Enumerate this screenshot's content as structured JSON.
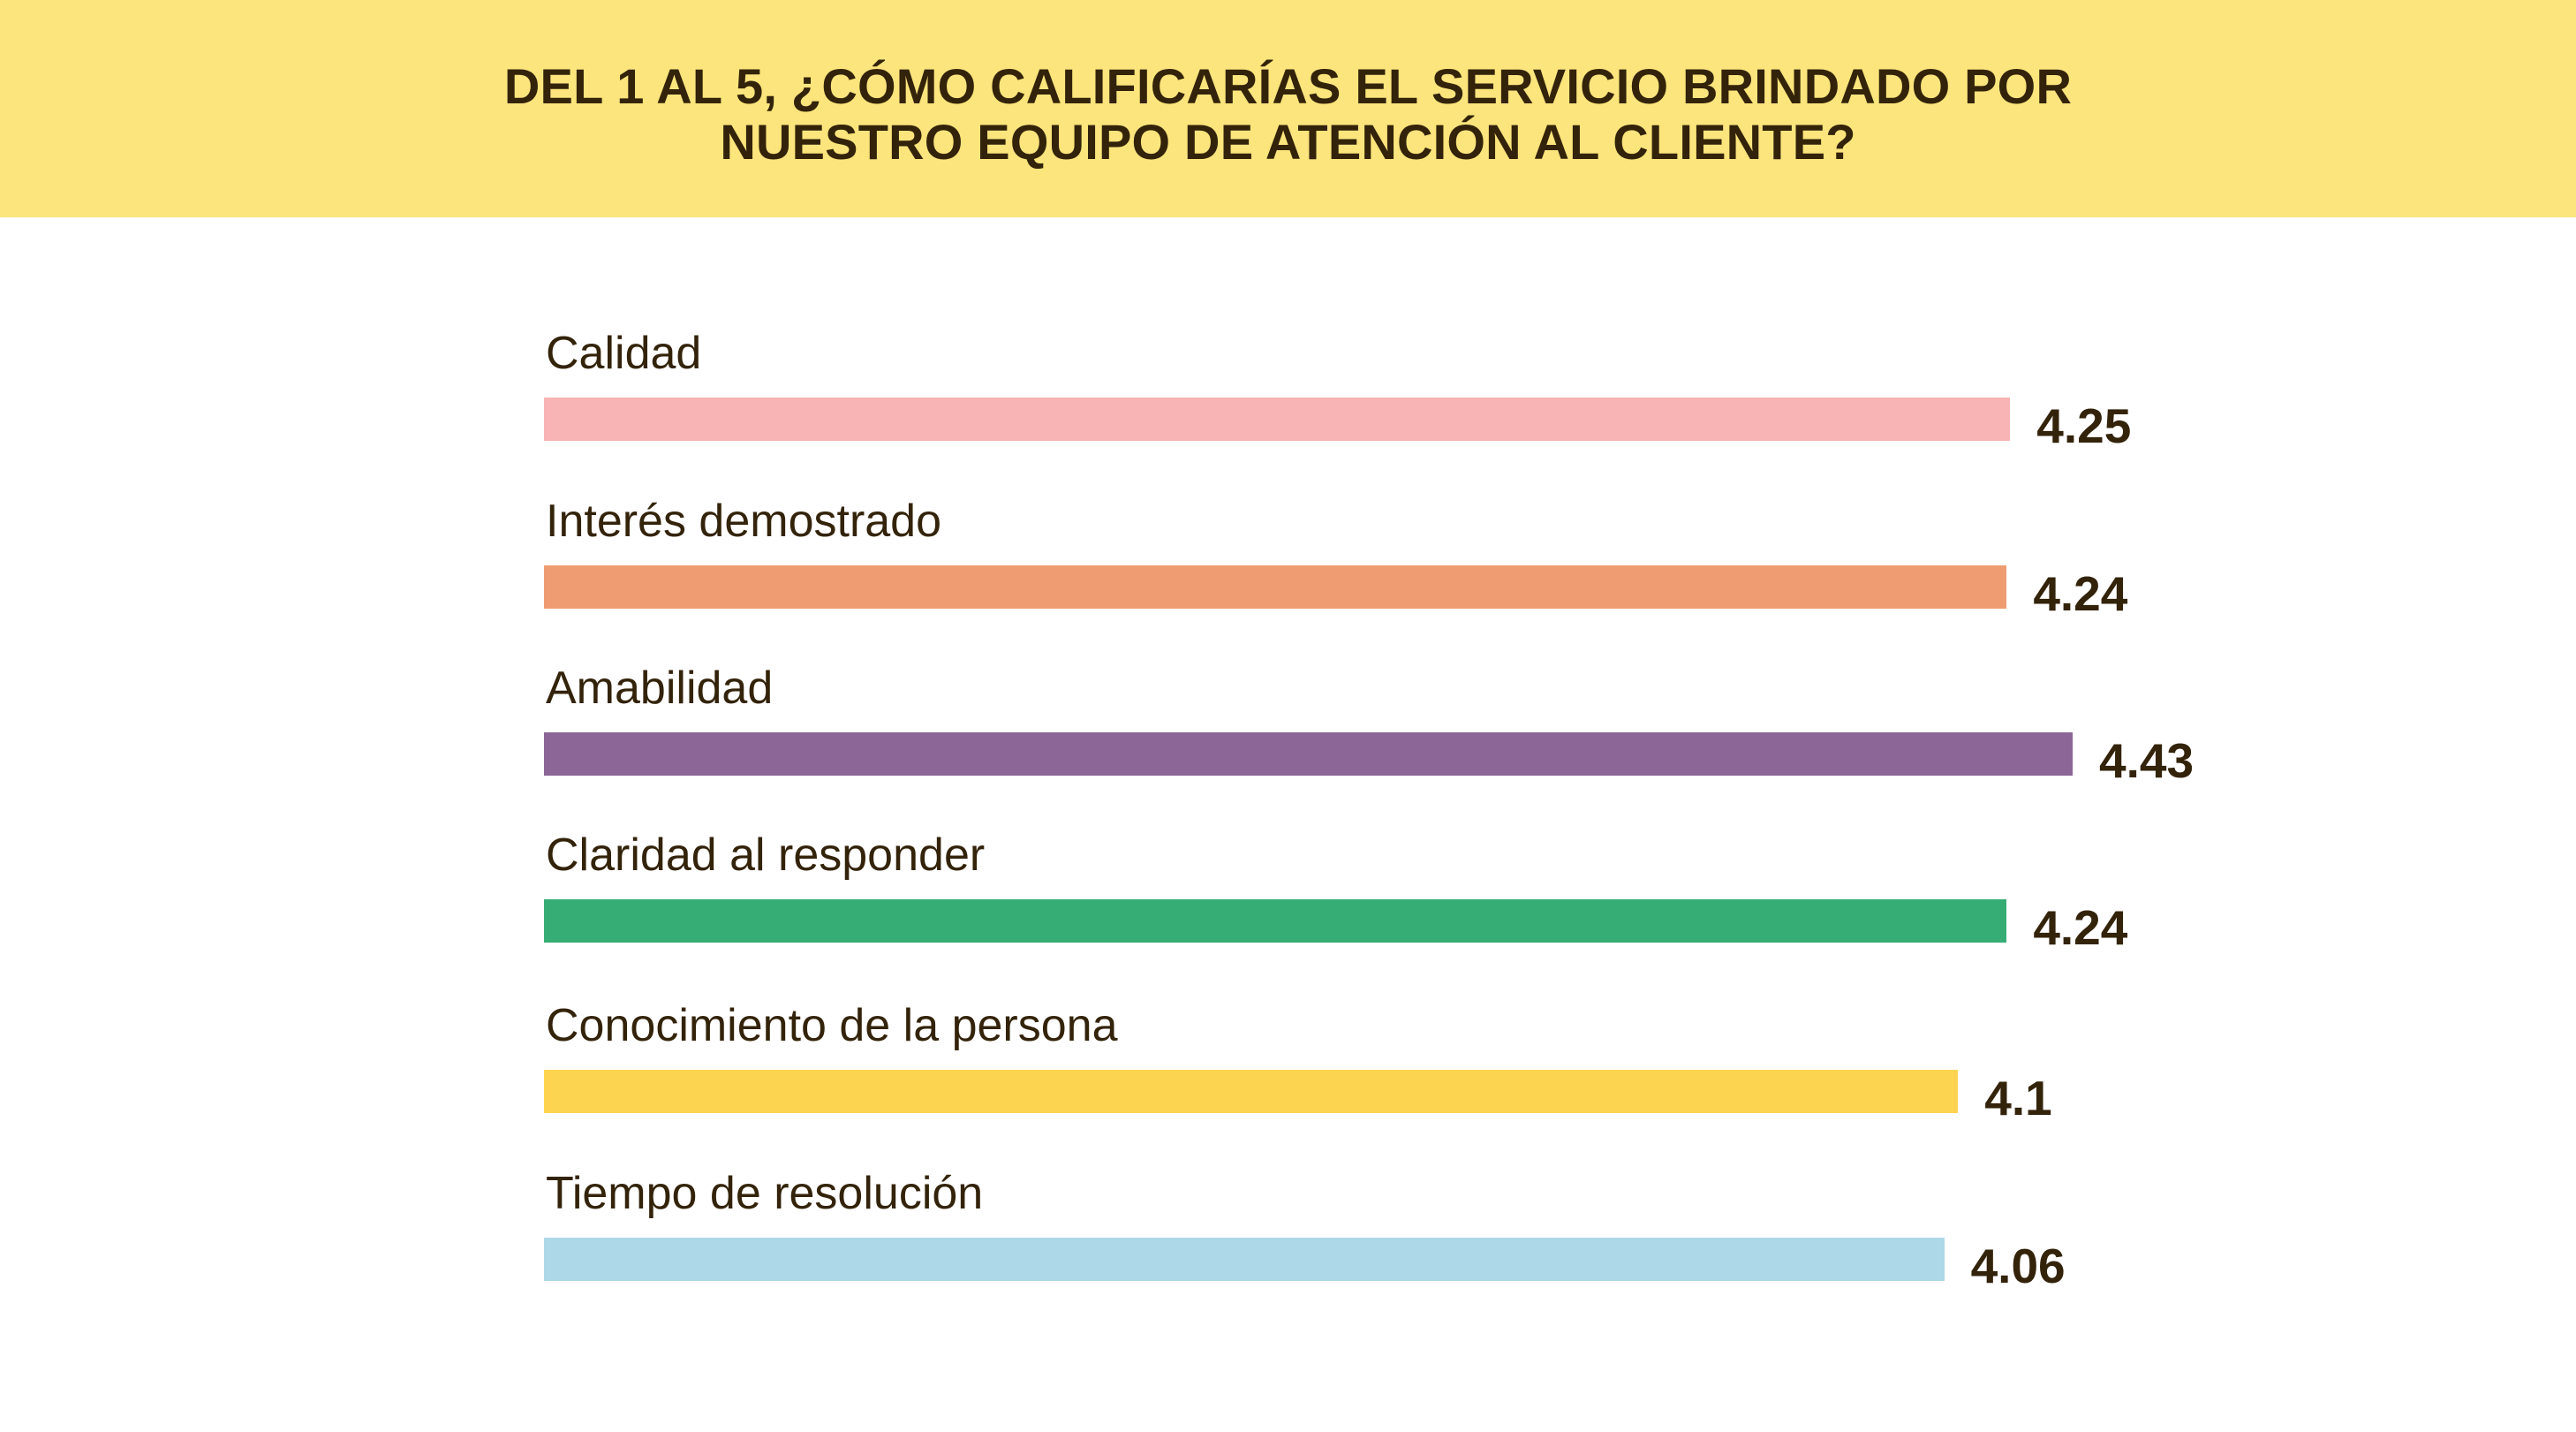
{
  "header": {
    "title_line1": "DEL 1 AL 5, ¿CÓMO CALIFICARÍAS EL SERVICIO BRINDADO POR",
    "title_line2": "NUESTRO EQUIPO DE ATENCIÓN AL CLIENTE?",
    "background": "#fbe57c"
  },
  "chart_data": {
    "type": "bar",
    "orientation": "horizontal",
    "title": "DEL 1 AL 5, ¿CÓMO CALIFICARÍAS EL SERVICIO BRINDADO POR NUESTRO EQUIPO DE ATENCIÓN AL CLIENTE?",
    "xlabel": "",
    "ylabel": "",
    "xlim": [
      0,
      5
    ],
    "grid": false,
    "legend": "none",
    "data_labels": true,
    "categories": [
      "Calidad",
      "Interés demostrado",
      "Amabilidad",
      "Claridad al responder",
      "Conocimiento de la persona",
      "Tiempo de resolución"
    ],
    "values": [
      4.25,
      4.24,
      4.43,
      4.24,
      4.1,
      4.06
    ],
    "value_labels": [
      "4.25",
      "4.24",
      "4.43",
      "4.24",
      "4.1",
      "4.06"
    ],
    "colors": [
      "#f8b4b4",
      "#f09c72",
      "#8b6697",
      "#37ad76",
      "#fdd450",
      "#acd8e7"
    ]
  }
}
